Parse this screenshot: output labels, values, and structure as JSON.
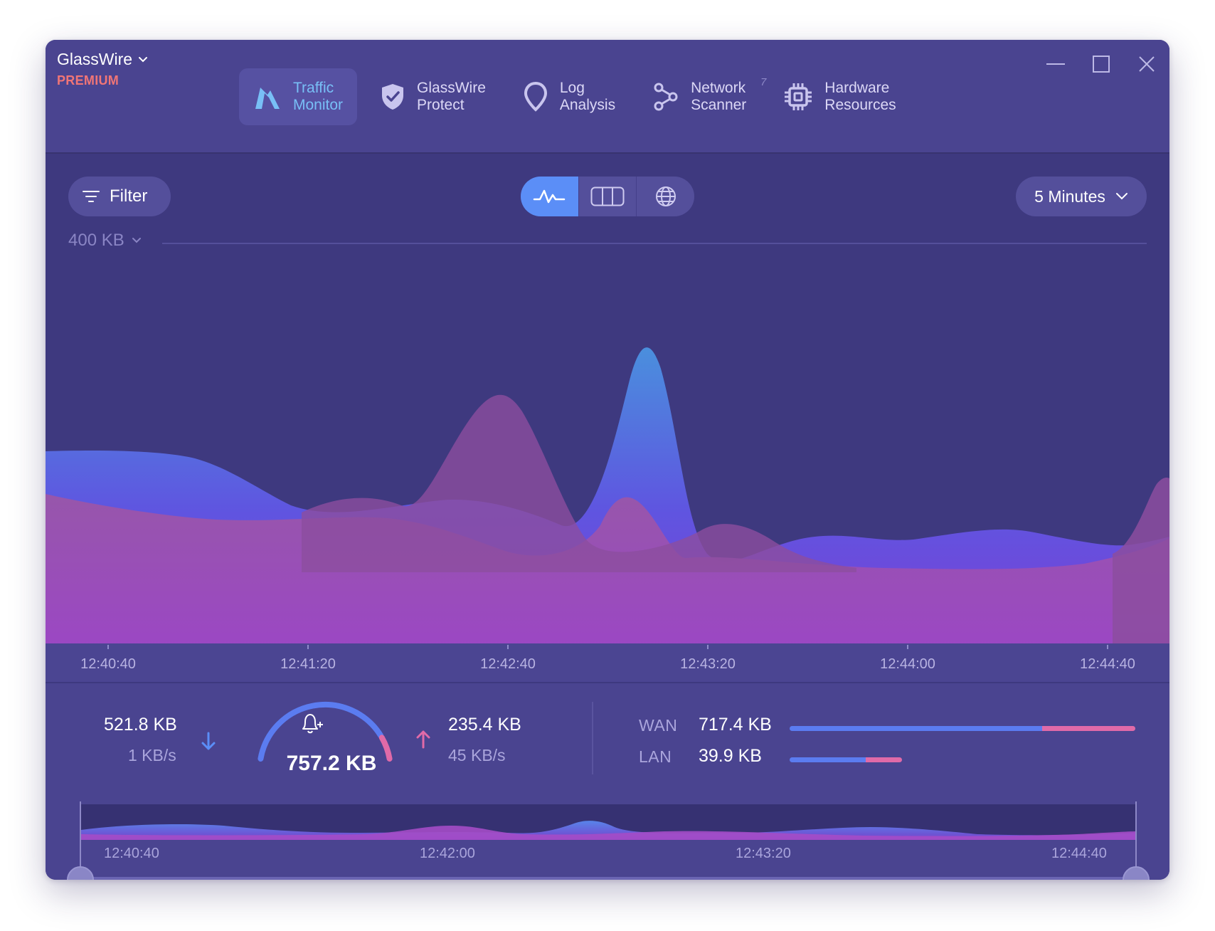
{
  "app": {
    "name": "GlassWire",
    "tier": "PREMIUM"
  },
  "nav": [
    {
      "line1": "Traffic",
      "line2": "Monitor",
      "icon": "traffic-monitor-icon",
      "active": true
    },
    {
      "line1": "GlassWire",
      "line2": "Protect",
      "icon": "shield-check-icon"
    },
    {
      "line1": "Log",
      "line2": "Analysis",
      "icon": "location-pin-icon"
    },
    {
      "line1": "Network",
      "line2": "Scanner",
      "icon": "network-nodes-icon",
      "badge": "7"
    },
    {
      "line1": "Hardware",
      "line2": "Resources",
      "icon": "cpu-chip-icon"
    }
  ],
  "toolbar": {
    "filter_label": "Filter",
    "range_label": "5 Minutes"
  },
  "graph": {
    "scale_label": "400 KB",
    "ticks": [
      "12:40:40",
      "12:41:20",
      "12:42:40",
      "12:43:20",
      "12:44:00",
      "12:44:40"
    ]
  },
  "stats": {
    "download_total": "521.8 KB",
    "download_rate": "1 KB/s",
    "total": "757.2 KB",
    "upload_total": "235.4 KB",
    "upload_rate": "45 KB/s",
    "wan_label": "WAN",
    "wan_value": "717.4 KB",
    "lan_label": "LAN",
    "lan_value": "39.9 KB",
    "wan_incoming_fraction": 0.73,
    "lan_incoming_fraction": 0.68,
    "gauge_upload_fraction": 0.13
  },
  "timeline": {
    "ticks": [
      "12:40:40",
      "12:42:00",
      "12:43:20",
      "12:44:40"
    ]
  },
  "colors": {
    "incoming": "#5b7cf0",
    "outgoing": "#e06aa8",
    "accent_active": "#78bff6",
    "premium": "#f07576"
  }
}
